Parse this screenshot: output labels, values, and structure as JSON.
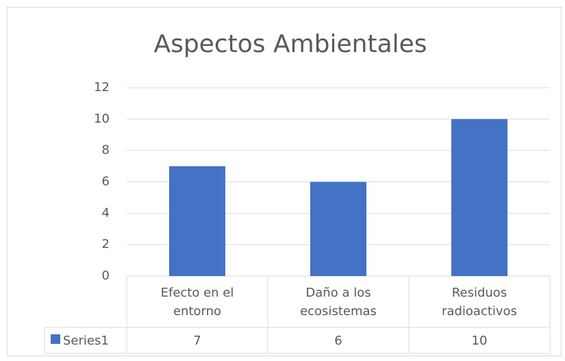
{
  "chart_data": {
    "type": "bar",
    "title": "Aspectos Ambientales",
    "categories": [
      "Efecto en el entorno",
      "Daño a los ecosistemas",
      "Residuos radioactivos"
    ],
    "series": [
      {
        "name": "Series1",
        "color": "#4472c4",
        "values": [
          7,
          6,
          10
        ]
      }
    ],
    "ylim": [
      0,
      12
    ],
    "yticks": [
      0,
      2,
      4,
      6,
      8,
      10,
      12
    ],
    "grid": true,
    "data_table": true
  }
}
